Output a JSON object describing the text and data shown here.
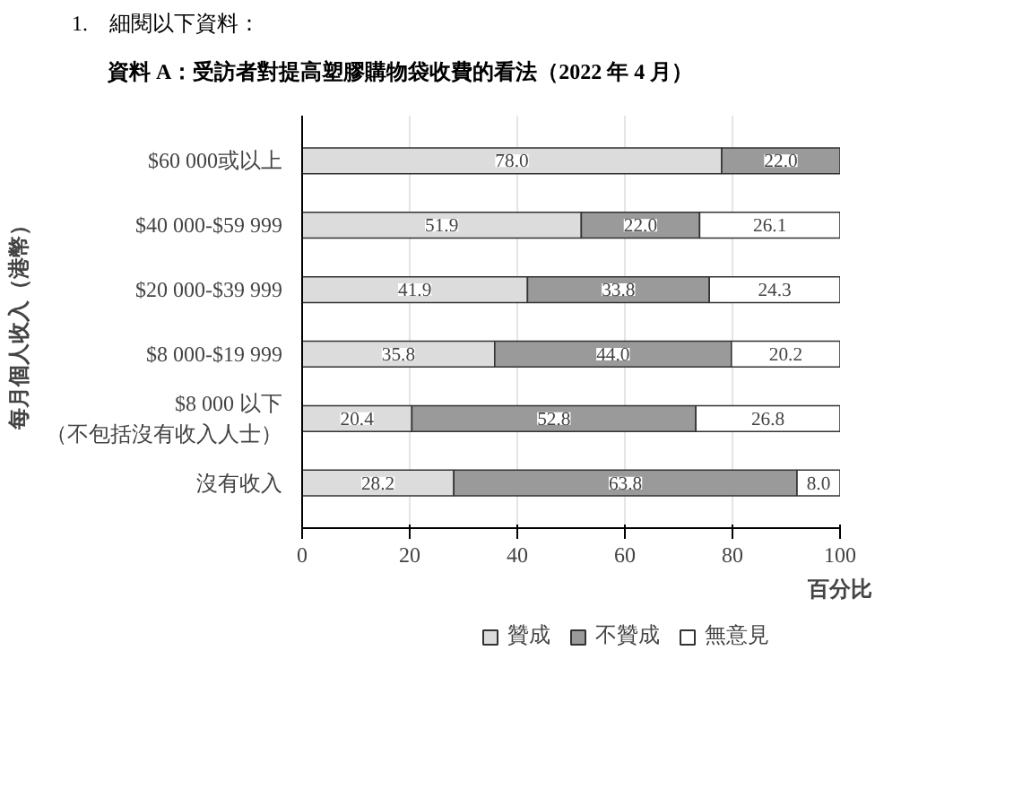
{
  "chart_data": {
    "type": "bar",
    "orientation": "horizontal",
    "stacked": true,
    "title": "資料 A：受訪者對提高塑膠購物袋收費的看法（2022 年 4 月）",
    "annotations": [
      "1.　細閱以下資料："
    ],
    "categories": [
      "$60 000或以上",
      "$40 000-$59 999",
      "$20 000-$39 999",
      "$8 000-$19 999",
      "$8 000 以下（不包括沒有收入人士）",
      "沒有收入"
    ],
    "series": [
      {
        "name": "贊成",
        "color": "#dcdcdc",
        "values": [
          78.0,
          51.9,
          41.9,
          35.8,
          20.4,
          28.2
        ],
        "value_labels": [
          "78.0",
          "51.9",
          "41.9",
          "35.8",
          "20.4",
          "28.2"
        ]
      },
      {
        "name": "不贊成",
        "color": "#9a9a9a",
        "values": [
          22.0,
          22.0,
          33.8,
          44.0,
          52.8,
          63.8
        ],
        "value_labels": [
          "22.0",
          "22.0",
          "33.8",
          "44.0",
          "52.8",
          "63.8"
        ]
      },
      {
        "name": "無意見",
        "color": "#ffffff",
        "values": [
          null,
          26.1,
          24.3,
          20.2,
          26.8,
          8.0
        ],
        "value_labels": [
          null,
          "26.1",
          "24.3",
          "20.2",
          "26.8",
          "8.0"
        ]
      }
    ],
    "xlim": [
      0,
      100
    ],
    "xticks": [
      0,
      20,
      40,
      60,
      80,
      100
    ],
    "xlabel": "百分比",
    "ylabel": "每月個人收入（港幣）",
    "grid": "x",
    "legend": "bottom"
  }
}
